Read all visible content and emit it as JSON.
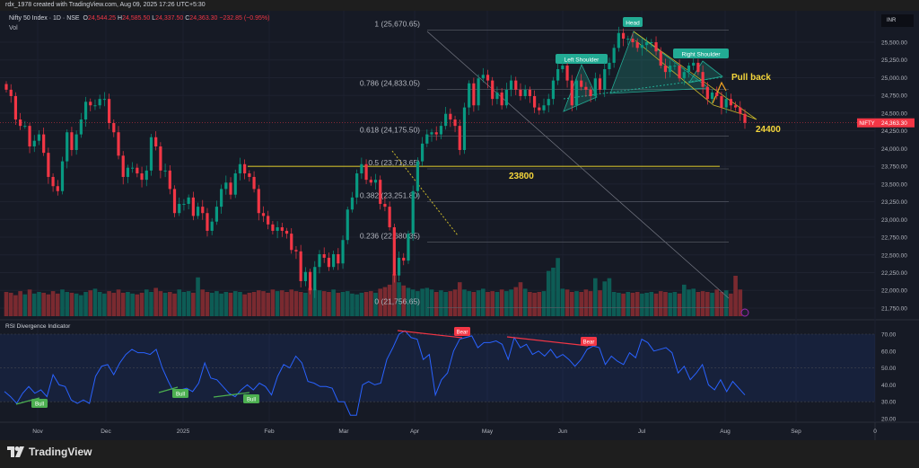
{
  "credit": "rdx_1978 created with TradingView.com, Aug 09, 2025 17:26 UTC+5:30",
  "symbol": {
    "name": "Nifty 50 Index · 1D · NSE",
    "o_label": "O",
    "o": "24,544.25",
    "h_label": "H",
    "h": "24,585.50",
    "l_label": "L",
    "l": "24,337.50",
    "c_label": "C",
    "c": "24,363.30",
    "change": "−232.85 (−0.95%)"
  },
  "vol_label": "Vol",
  "currency": "INR",
  "price_tag": {
    "symbol": "NIFTY",
    "value": "24,363.30"
  },
  "rsi_title": "RSI Divergence Indicator",
  "brand": "TradingView",
  "colors": {
    "up": "#089981",
    "down": "#f23645",
    "rsi": "#2962ff",
    "fib": "#787b86",
    "level": "#c9b82a",
    "pattern": "#22ab94"
  },
  "chart_data": {
    "type": "candlestick",
    "price_axis": {
      "ticks": [
        "25,500.00",
        "25,250.00",
        "25,000.00",
        "24,750.00",
        "24,500.00",
        "24,250.00",
        "24,000.00",
        "23,750.00",
        "23,500.00",
        "23,250.00",
        "23,000.00",
        "22,750.00",
        "22,500.00",
        "22,250.00",
        "22,000.00",
        "21,750.00"
      ],
      "range": [
        21650,
        25750
      ]
    },
    "time_axis": [
      "Nov",
      "Dec",
      "2025",
      "Feb",
      "Mar",
      "Apr",
      "May",
      "Jun",
      "Jul",
      "Aug",
      "Sep",
      "0"
    ],
    "closes": [
      24830,
      24740,
      24410,
      24320,
      24320,
      24030,
      24110,
      24200,
      23940,
      23600,
      23470,
      23400,
      23820,
      24230,
      23980,
      24200,
      24410,
      24660,
      24610,
      24610,
      24700,
      24700,
      24360,
      24230,
      23900,
      23600,
      23730,
      23730,
      23650,
      23560,
      23690,
      24160,
      24030,
      23690,
      23690,
      23430,
      23090,
      23220,
      23220,
      23310,
      23050,
      23180,
      23090,
      22840,
      22970,
      23180,
      23430,
      23520,
      23350,
      23650,
      23780,
      23650,
      23600,
      23430,
      23090,
      23050,
      22930,
      22840,
      22890,
      22840,
      22800,
      22570,
      22550,
      22130,
      22260,
      22000,
      22330,
      22510,
      22460,
      22330,
      22510,
      22380,
      22710,
      23140,
      23310,
      23650,
      23780,
      23560,
      23520,
      23560,
      23220,
      23180,
      22890,
      22210,
      22460,
      22420,
      22800,
      23400,
      23820,
      24070,
      24200,
      24230,
      24200,
      24320,
      24490,
      24410,
      24320,
      23980,
      24580,
      24920,
      24610,
      24990,
      25040,
      24960,
      24700,
      24790,
      24610,
      24830,
      24960,
      24830,
      24740,
      24830,
      24740,
      24580,
      24540,
      24610,
      24700,
      24960,
      25120,
      25170,
      24960,
      24610,
      24960,
      24870,
      24830,
      24740,
      24990,
      24830,
      25120,
      25210,
      25420,
      25630,
      25550,
      25550,
      25500,
      25420,
      25460,
      25500,
      25500,
      25370,
      25170,
      25080,
      25170,
      25170,
      24990,
      25080,
      25170,
      25210,
      25080,
      24870,
      24700,
      24790,
      24740,
      24580,
      24700,
      24610,
      24580,
      24490,
      24363
    ],
    "volumes": [
      300,
      290,
      260,
      310,
      270,
      330,
      280,
      300,
      290,
      270,
      310,
      280,
      330,
      300,
      290,
      280,
      260,
      300,
      320,
      340,
      300,
      280,
      310,
      290,
      330,
      290,
      300,
      280,
      270,
      290,
      330,
      300,
      350,
      310,
      290,
      300,
      280,
      330,
      300,
      310,
      290,
      480,
      330,
      300,
      290,
      310,
      280,
      300,
      290,
      310,
      300,
      270,
      290,
      300,
      320,
      310,
      290,
      330,
      310,
      320,
      300,
      330,
      310,
      300,
      290,
      350,
      330,
      320,
      310,
      300,
      330,
      290,
      300,
      310,
      280,
      270,
      290,
      300,
      310,
      290,
      340,
      360,
      390,
      520,
      420,
      380,
      350,
      330,
      310,
      340,
      350,
      330,
      300,
      320,
      300,
      310,
      330,
      420,
      330,
      310,
      300,
      320,
      340,
      300,
      310,
      300,
      330,
      310,
      330,
      360,
      420,
      340,
      300,
      290,
      300,
      310,
      560,
      600,
      720,
      340,
      330,
      300,
      310,
      300,
      330,
      310,
      470,
      320,
      430,
      470,
      300,
      290,
      280,
      300,
      290,
      300,
      280,
      290,
      300,
      280,
      310,
      300,
      290,
      300,
      280,
      390,
      330,
      340,
      300,
      310,
      300,
      290,
      330,
      300,
      320,
      280,
      500,
      330
    ],
    "fib_levels": [
      {
        "ratio": "1",
        "price": 25670.65,
        "label": "1 (25,670.65)"
      },
      {
        "ratio": "0.786",
        "price": 24833.05,
        "label": "0.786 (24,833.05)"
      },
      {
        "ratio": "0.618",
        "price": 24175.5,
        "label": "0.618 (24,175.50)"
      },
      {
        "ratio": "0.5",
        "price": 23713.65,
        "label": "0.5 (23,713.65)"
      },
      {
        "ratio": "0.382",
        "price": 23251.8,
        "label": "0.382 (23,251.80)"
      },
      {
        "ratio": "0.236",
        "price": 22680.35,
        "label": "0.236 (22,680.35)"
      },
      {
        "ratio": "0",
        "price": 21756.65,
        "label": "0 (21,756.65)"
      }
    ],
    "annotations": {
      "support": "23800",
      "support_price": 23800,
      "target": "24400",
      "pullback": "Pull back",
      "head": "Head",
      "left_shoulder": "Left Shoulder",
      "right_shoulder": "Right Shoulder"
    },
    "rsi": {
      "ylim": [
        18,
        74
      ],
      "ticks": [
        "70.00",
        "60.00",
        "50.00",
        "40.00",
        "30.00",
        "20.00"
      ],
      "overbought": 70,
      "oversold": 30,
      "values": [
        36,
        33,
        29,
        35,
        39,
        35,
        37,
        33,
        46,
        40,
        39,
        31,
        29,
        31,
        29,
        45,
        51,
        52,
        46,
        53,
        58,
        61,
        59,
        59,
        58,
        61,
        50,
        42,
        35,
        37,
        38,
        36,
        41,
        53,
        44,
        43,
        39,
        35,
        33,
        37,
        40,
        37,
        41,
        39,
        34,
        45,
        52,
        50,
        57,
        53,
        42,
        41,
        39,
        39,
        38,
        30,
        30,
        22,
        22,
        40,
        42,
        40,
        41,
        55,
        62,
        70,
        72,
        68,
        67,
        55,
        58,
        34,
        43,
        47,
        60,
        67,
        68,
        69,
        62,
        65,
        65,
        66,
        64,
        55,
        68,
        62,
        64,
        58,
        60,
        57,
        61,
        56,
        58,
        55,
        51,
        55,
        61,
        63,
        62,
        52,
        57,
        54,
        52,
        59,
        56,
        67,
        65,
        60,
        61,
        62,
        59,
        47,
        51,
        43,
        47,
        52,
        40,
        37,
        43,
        36,
        42,
        38,
        34
      ],
      "signals": [
        {
          "label": "Bull"
        },
        {
          "label": "Bull"
        },
        {
          "label": "Bull"
        },
        {
          "label": "Bear"
        },
        {
          "label": "Bear"
        }
      ]
    }
  }
}
